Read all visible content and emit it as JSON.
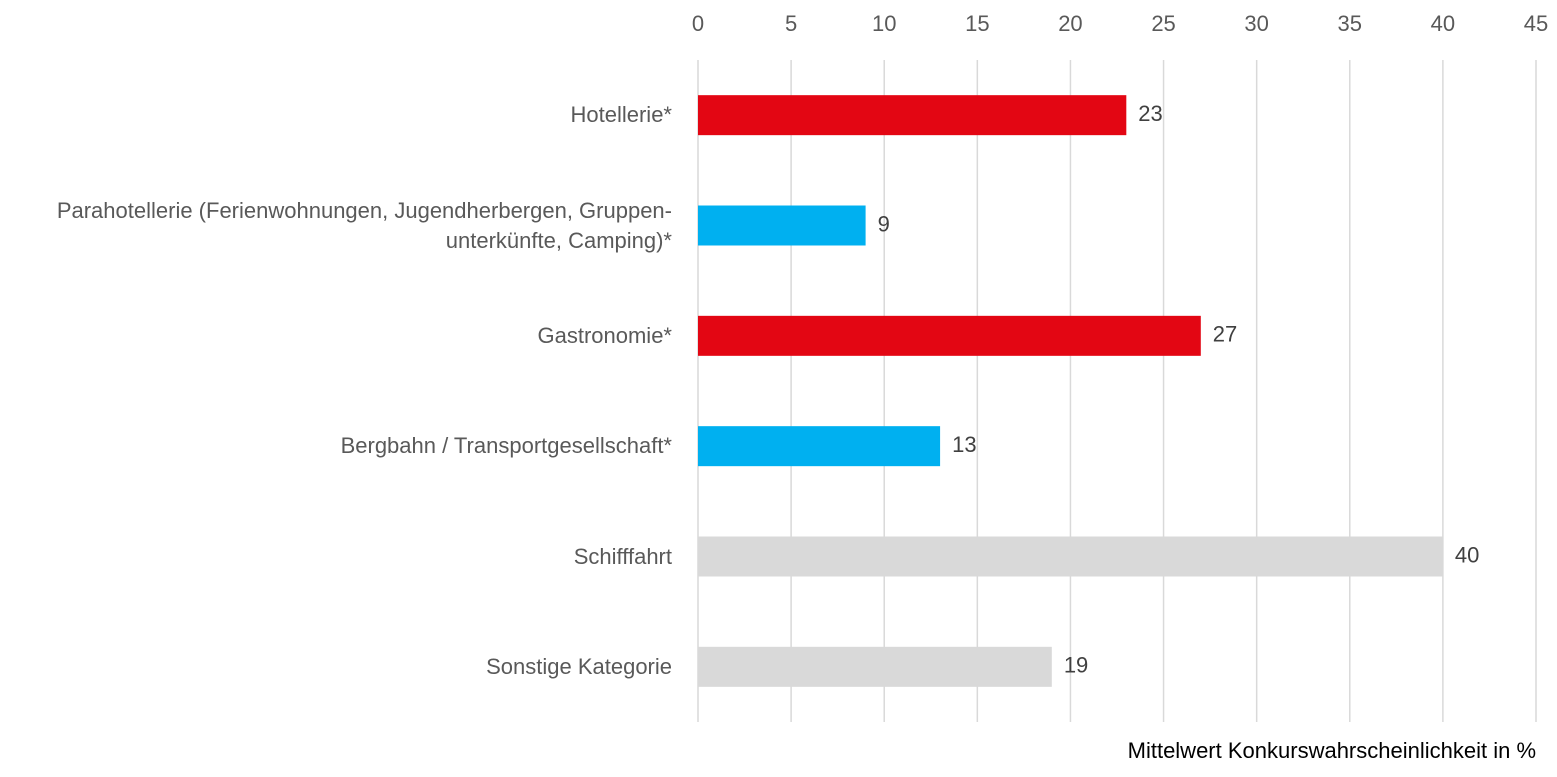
{
  "chart_data": {
    "type": "bar",
    "orientation": "horizontal",
    "categories": [
      "Hotellerie*",
      "Parahotellerie (Ferienwohnungen, Jugendherbergen, Gruppen- unterkünfte, Camping)*",
      "Gastronomie*",
      "Bergbahn / Transportgesellschaft*",
      "Schifffahrt",
      "Sonstige Kategorie"
    ],
    "values": [
      23,
      9,
      27,
      13,
      40,
      19
    ],
    "colors": [
      "#e30613",
      "#00b0f0",
      "#e30613",
      "#00b0f0",
      "#d9d9d9",
      "#d9d9d9"
    ],
    "xlim": [
      0,
      45
    ],
    "xticks": [
      0,
      5,
      10,
      15,
      20,
      25,
      30,
      35,
      40,
      45
    ],
    "grid": true,
    "x_label": "Mittelwert Konkurswahrscheinlichkeit in %"
  }
}
